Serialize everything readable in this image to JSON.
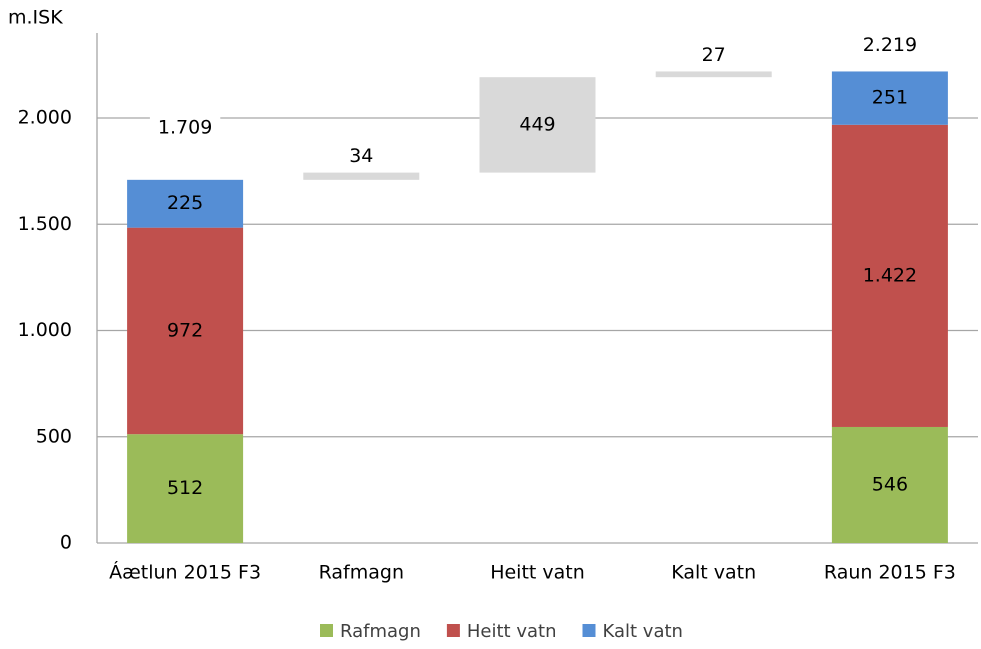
{
  "chart_data": {
    "type": "waterfall",
    "y_label": "m.ISK",
    "categories": [
      "Áætlun 2015 F3",
      "Rafmagn",
      "Heitt vatn",
      "Kalt vatn",
      "Raun 2015 F3"
    ],
    "series": [
      {
        "name": "Rafmagn",
        "color": "#9bbb59",
        "values": [
          512,
          null,
          null,
          null,
          546
        ]
      },
      {
        "name": "Heitt vatn",
        "color": "#c0504d",
        "values": [
          972,
          null,
          null,
          null,
          1422
        ],
        "value_labels": [
          "972",
          null,
          null,
          null,
          "1.422"
        ]
      },
      {
        "name": "Kalt vatn",
        "color": "#558ed5",
        "values": [
          225,
          null,
          null,
          null,
          251
        ]
      }
    ],
    "totals": {
      "values": [
        1709,
        null,
        null,
        null,
        2219
      ],
      "value_labels": [
        "1.709",
        null,
        null,
        null,
        "2.219"
      ]
    },
    "changes": {
      "color": "#d9d9d9",
      "values": [
        null,
        34,
        449,
        27,
        null
      ]
    },
    "ylim": [
      0,
      2400
    ],
    "yticks": [
      0,
      500,
      {
        "value": 1000,
        "label": "1.000"
      },
      {
        "value": 1500,
        "label": "1.500"
      },
      {
        "value": 2000,
        "label": "2.000"
      }
    ],
    "grid": true
  }
}
